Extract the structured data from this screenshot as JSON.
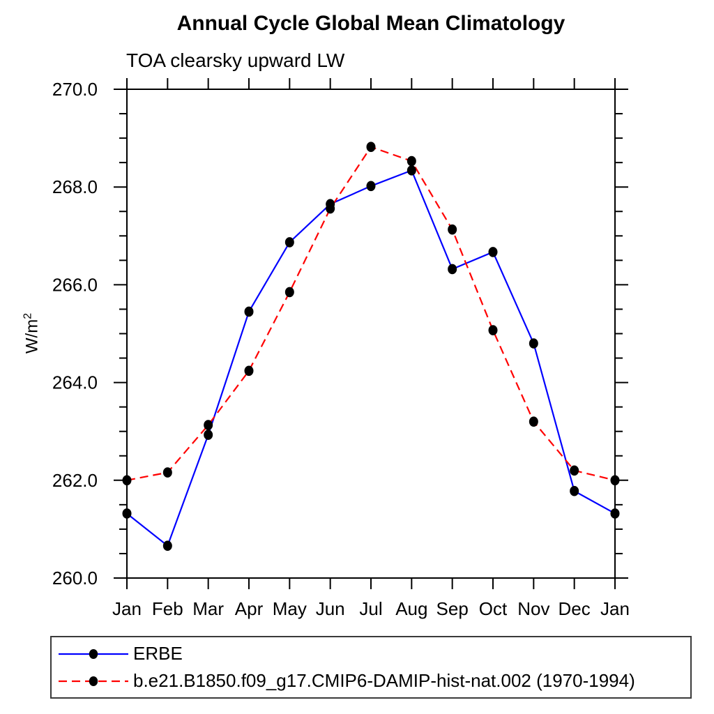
{
  "page": {
    "background": "#ffffff",
    "text_color": "#000000"
  },
  "chart_data": {
    "type": "line",
    "title": "Annual Cycle Global Mean Climatology",
    "subtitle": "TOA clearsky upward LW",
    "ylabel_text": "W/m",
    "ylabel_sup": "2",
    "x_labels": [
      "Jan",
      "Feb",
      "Mar",
      "Apr",
      "May",
      "Jun",
      "Jul",
      "Aug",
      "Sep",
      "Oct",
      "Nov",
      "Dec",
      "Jan"
    ],
    "ylim": [
      260.0,
      270.0
    ],
    "y_major_ticks": [
      270.0,
      268.0,
      266.0,
      264.0,
      262.0,
      260.0
    ],
    "y_tick_labels": [
      "270.0",
      "268.0",
      "266.0",
      "264.0",
      "262.0",
      "260.0"
    ],
    "y_minor_step": 0.5,
    "grid": false,
    "axis_box": true,
    "legend_position": "bottom-left boxed",
    "series": [
      {
        "name": "ERBE",
        "color": "#0000ff",
        "line_style": "solid",
        "marker": "filled-circle",
        "marker_color": "#000000",
        "values": [
          261.32,
          260.66,
          262.93,
          265.45,
          266.87,
          267.65,
          268.02,
          268.34,
          266.32,
          266.67,
          264.8,
          261.78,
          261.32
        ]
      },
      {
        "name": "b.e21.B1850.f09_g17.CMIP6-DAMIP-hist-nat.002 (1970-1994)",
        "color": "#ff0000",
        "line_style": "dashed",
        "marker": "filled-circle",
        "marker_color": "#000000",
        "values": [
          262.0,
          262.16,
          263.13,
          264.24,
          265.85,
          267.56,
          268.82,
          268.53,
          267.13,
          265.07,
          263.2,
          262.2,
          262.0
        ]
      }
    ]
  }
}
